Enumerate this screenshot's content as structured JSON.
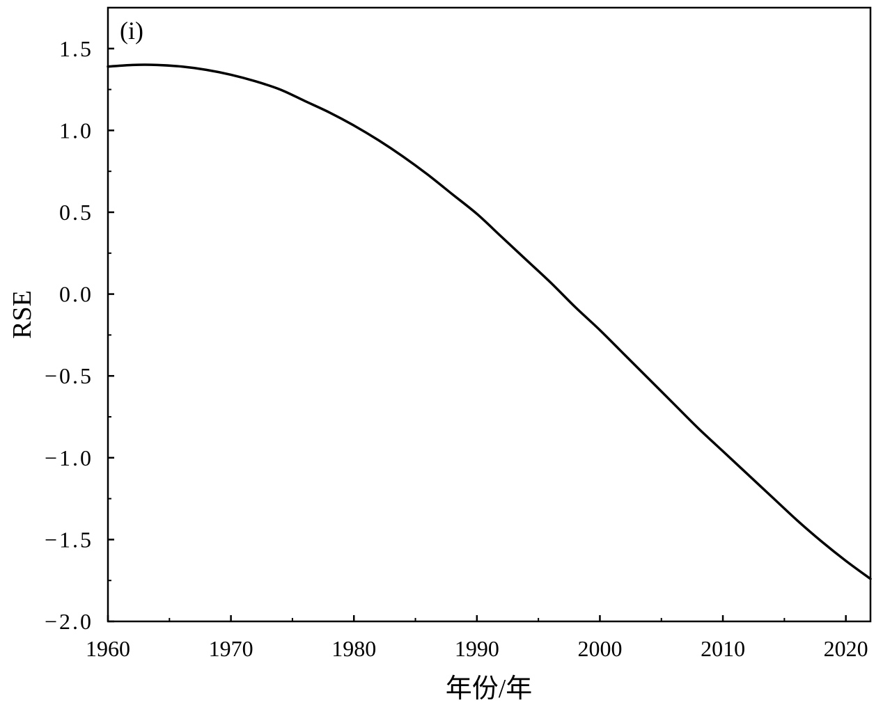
{
  "chart_data": {
    "type": "line",
    "panel_label": "(i)",
    "xlabel": "年份/年",
    "ylabel": "RSE",
    "xlim": [
      1960,
      2022
    ],
    "ylim": [
      -2.0,
      1.75
    ],
    "x_ticks": [
      1960,
      1970,
      1980,
      1990,
      2000,
      2010,
      2020
    ],
    "x_tick_labels": [
      "1960",
      "1970",
      "1980",
      "1990",
      "2000",
      "2010",
      "2020"
    ],
    "y_ticks": [
      1.5,
      1.0,
      0.5,
      0.0,
      -0.5,
      -1.0,
      -1.5,
      -2.0
    ],
    "y_tick_labels": [
      "1.5",
      "1.0",
      "0.5",
      "0.0",
      "−0.5",
      "−1.0",
      "−1.5",
      "−2.0"
    ],
    "x_minor_step": 5,
    "y_minor_step": 0.25,
    "grid": false,
    "series": [
      {
        "color": "#000000",
        "x": [
          1960,
          1962,
          1964,
          1966,
          1968,
          1970,
          1972,
          1974,
          1976,
          1978,
          1980,
          1982,
          1984,
          1986,
          1988,
          1990,
          1992,
          1994,
          1996,
          1998,
          2000,
          2002,
          2004,
          2006,
          2008,
          2010,
          2012,
          2014,
          2016,
          2018,
          2020,
          2022
        ],
        "y": [
          1.39,
          1.4,
          1.4,
          1.39,
          1.37,
          1.34,
          1.3,
          1.25,
          1.18,
          1.11,
          1.03,
          0.94,
          0.84,
          0.73,
          0.61,
          0.49,
          0.35,
          0.21,
          0.07,
          -0.08,
          -0.22,
          -0.37,
          -0.52,
          -0.67,
          -0.82,
          -0.96,
          -1.1,
          -1.24,
          -1.38,
          -1.51,
          -1.63,
          -1.74
        ]
      }
    ]
  }
}
